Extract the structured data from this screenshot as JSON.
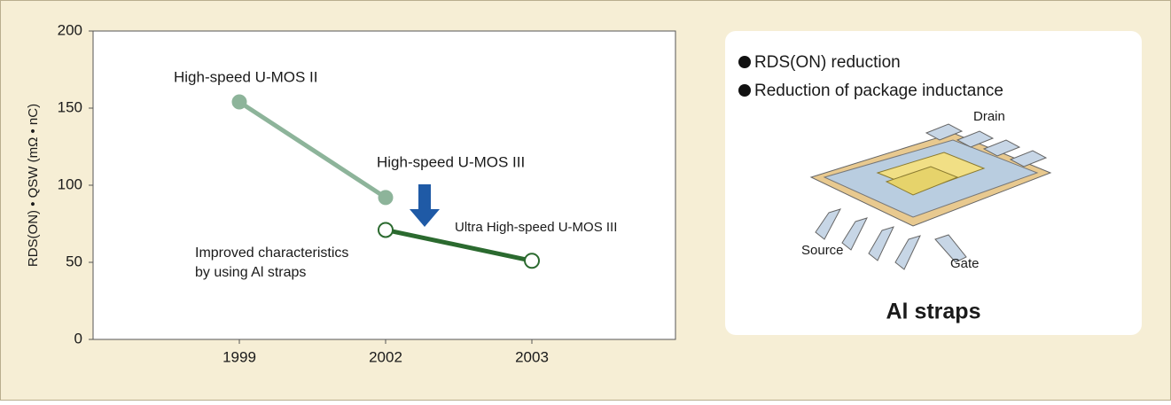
{
  "chart_data": {
    "type": "line",
    "y_label": "RDS(ON) • QSW (mΩ • nC)",
    "categories": [
      "1999",
      "2002",
      "2003"
    ],
    "series": [
      {
        "name": "High-speed U-MOS II",
        "color": "#8db49a",
        "marker": "filled",
        "values": [
          154,
          92,
          null
        ]
      },
      {
        "name": "Ultra High-speed U-MOS III",
        "color": "#2b6a2f",
        "marker": "open",
        "values": [
          null,
          71,
          51
        ]
      }
    ],
    "ylim": [
      0,
      200
    ],
    "yticks": [
      0,
      50,
      100,
      150,
      200
    ],
    "annotations": {
      "upper": "High-speed U-MOS III",
      "improved": [
        "Improved characteristics",
        "by using Al straps"
      ]
    },
    "panel": {
      "bullets": [
        "RDS(ON) reduction",
        "Reduction of package inductance"
      ],
      "labels": {
        "drain": "Drain",
        "source": "Source",
        "gate": "Gate"
      },
      "caption": "Al straps"
    }
  }
}
